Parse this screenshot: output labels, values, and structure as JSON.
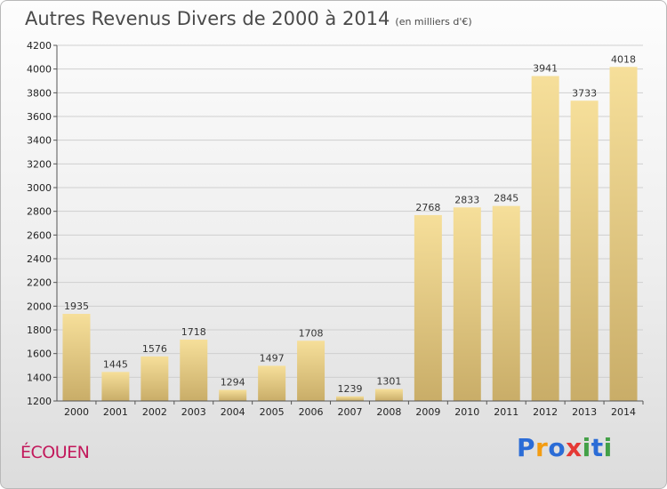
{
  "title": "Autres Revenus Divers de 2000 à 2014",
  "subtitle": "(en milliers d'€)",
  "place": "ÉCOUEN",
  "brand": {
    "letters": [
      "P",
      "r",
      "o",
      "x",
      "i",
      "t",
      "i"
    ],
    "colors": [
      "#2b6cd6",
      "#f39c12",
      "#2b6cd6",
      "#e53935",
      "#43a047",
      "#2b6cd6",
      "#43a047"
    ]
  },
  "colors": {
    "bar_top": "#f6df9a",
    "bar_bottom": "#c9ad68",
    "grid": "#cfcfcf",
    "axis": "#555555"
  },
  "chart_data": {
    "type": "bar",
    "title": "Autres Revenus Divers de 2000 à 2014",
    "subtitle": "(en milliers d'€)",
    "xlabel": "",
    "ylabel": "",
    "categories": [
      "2000",
      "2001",
      "2002",
      "2003",
      "2004",
      "2005",
      "2006",
      "2007",
      "2008",
      "2009",
      "2010",
      "2011",
      "2012",
      "2013",
      "2014"
    ],
    "values": [
      1935,
      1445,
      1576,
      1718,
      1294,
      1497,
      1708,
      1239,
      1301,
      2768,
      2833,
      2845,
      3941,
      3733,
      4018
    ],
    "ylim": [
      1200,
      4200
    ],
    "yticks": [
      1200,
      1400,
      1600,
      1800,
      2000,
      2200,
      2400,
      2600,
      2800,
      3000,
      3200,
      3400,
      3600,
      3800,
      4000,
      4200
    ],
    "grid": true,
    "legend": "none"
  }
}
